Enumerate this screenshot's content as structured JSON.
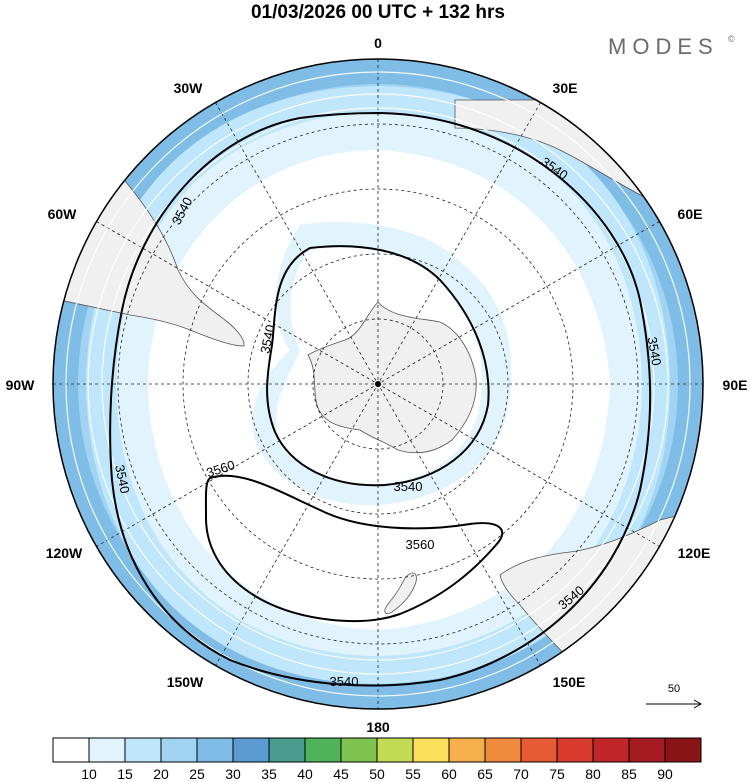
{
  "header": {
    "title": "01/03/2026  00 UTC  + 132 hrs",
    "brand": "MODES",
    "brand_mark": "©"
  },
  "longitude_labels": [
    "0",
    "30E",
    "60E",
    "90E",
    "120E",
    "150E",
    "180",
    "150W",
    "120W",
    "90W",
    "60W",
    "30W"
  ],
  "contour_labels": [
    "3540",
    "3540",
    "3540",
    "3540",
    "3540",
    "3540",
    "3540",
    "3560",
    "3560"
  ],
  "vector_reference": {
    "value": "50"
  },
  "colorbar": {
    "ticks": [
      "10",
      "15",
      "20",
      "25",
      "30",
      "35",
      "40",
      "45",
      "50",
      "55",
      "60",
      "65",
      "70",
      "75",
      "80",
      "85",
      "90"
    ],
    "colors": [
      "#ffffff",
      "#e1f4fd",
      "#bfe6fa",
      "#a1d3f2",
      "#7fbce6",
      "#5b9bd2",
      "#4a9d8e",
      "#4fb35a",
      "#7fc351",
      "#c4dc54",
      "#fce05c",
      "#f6b04b",
      "#f08a3c",
      "#e85a33",
      "#d93a2e",
      "#c1262b",
      "#a51b21",
      "#8a1318"
    ]
  },
  "colors": {
    "land": "#f0f0f0",
    "coast": "#555555",
    "contour": "#000000"
  }
}
